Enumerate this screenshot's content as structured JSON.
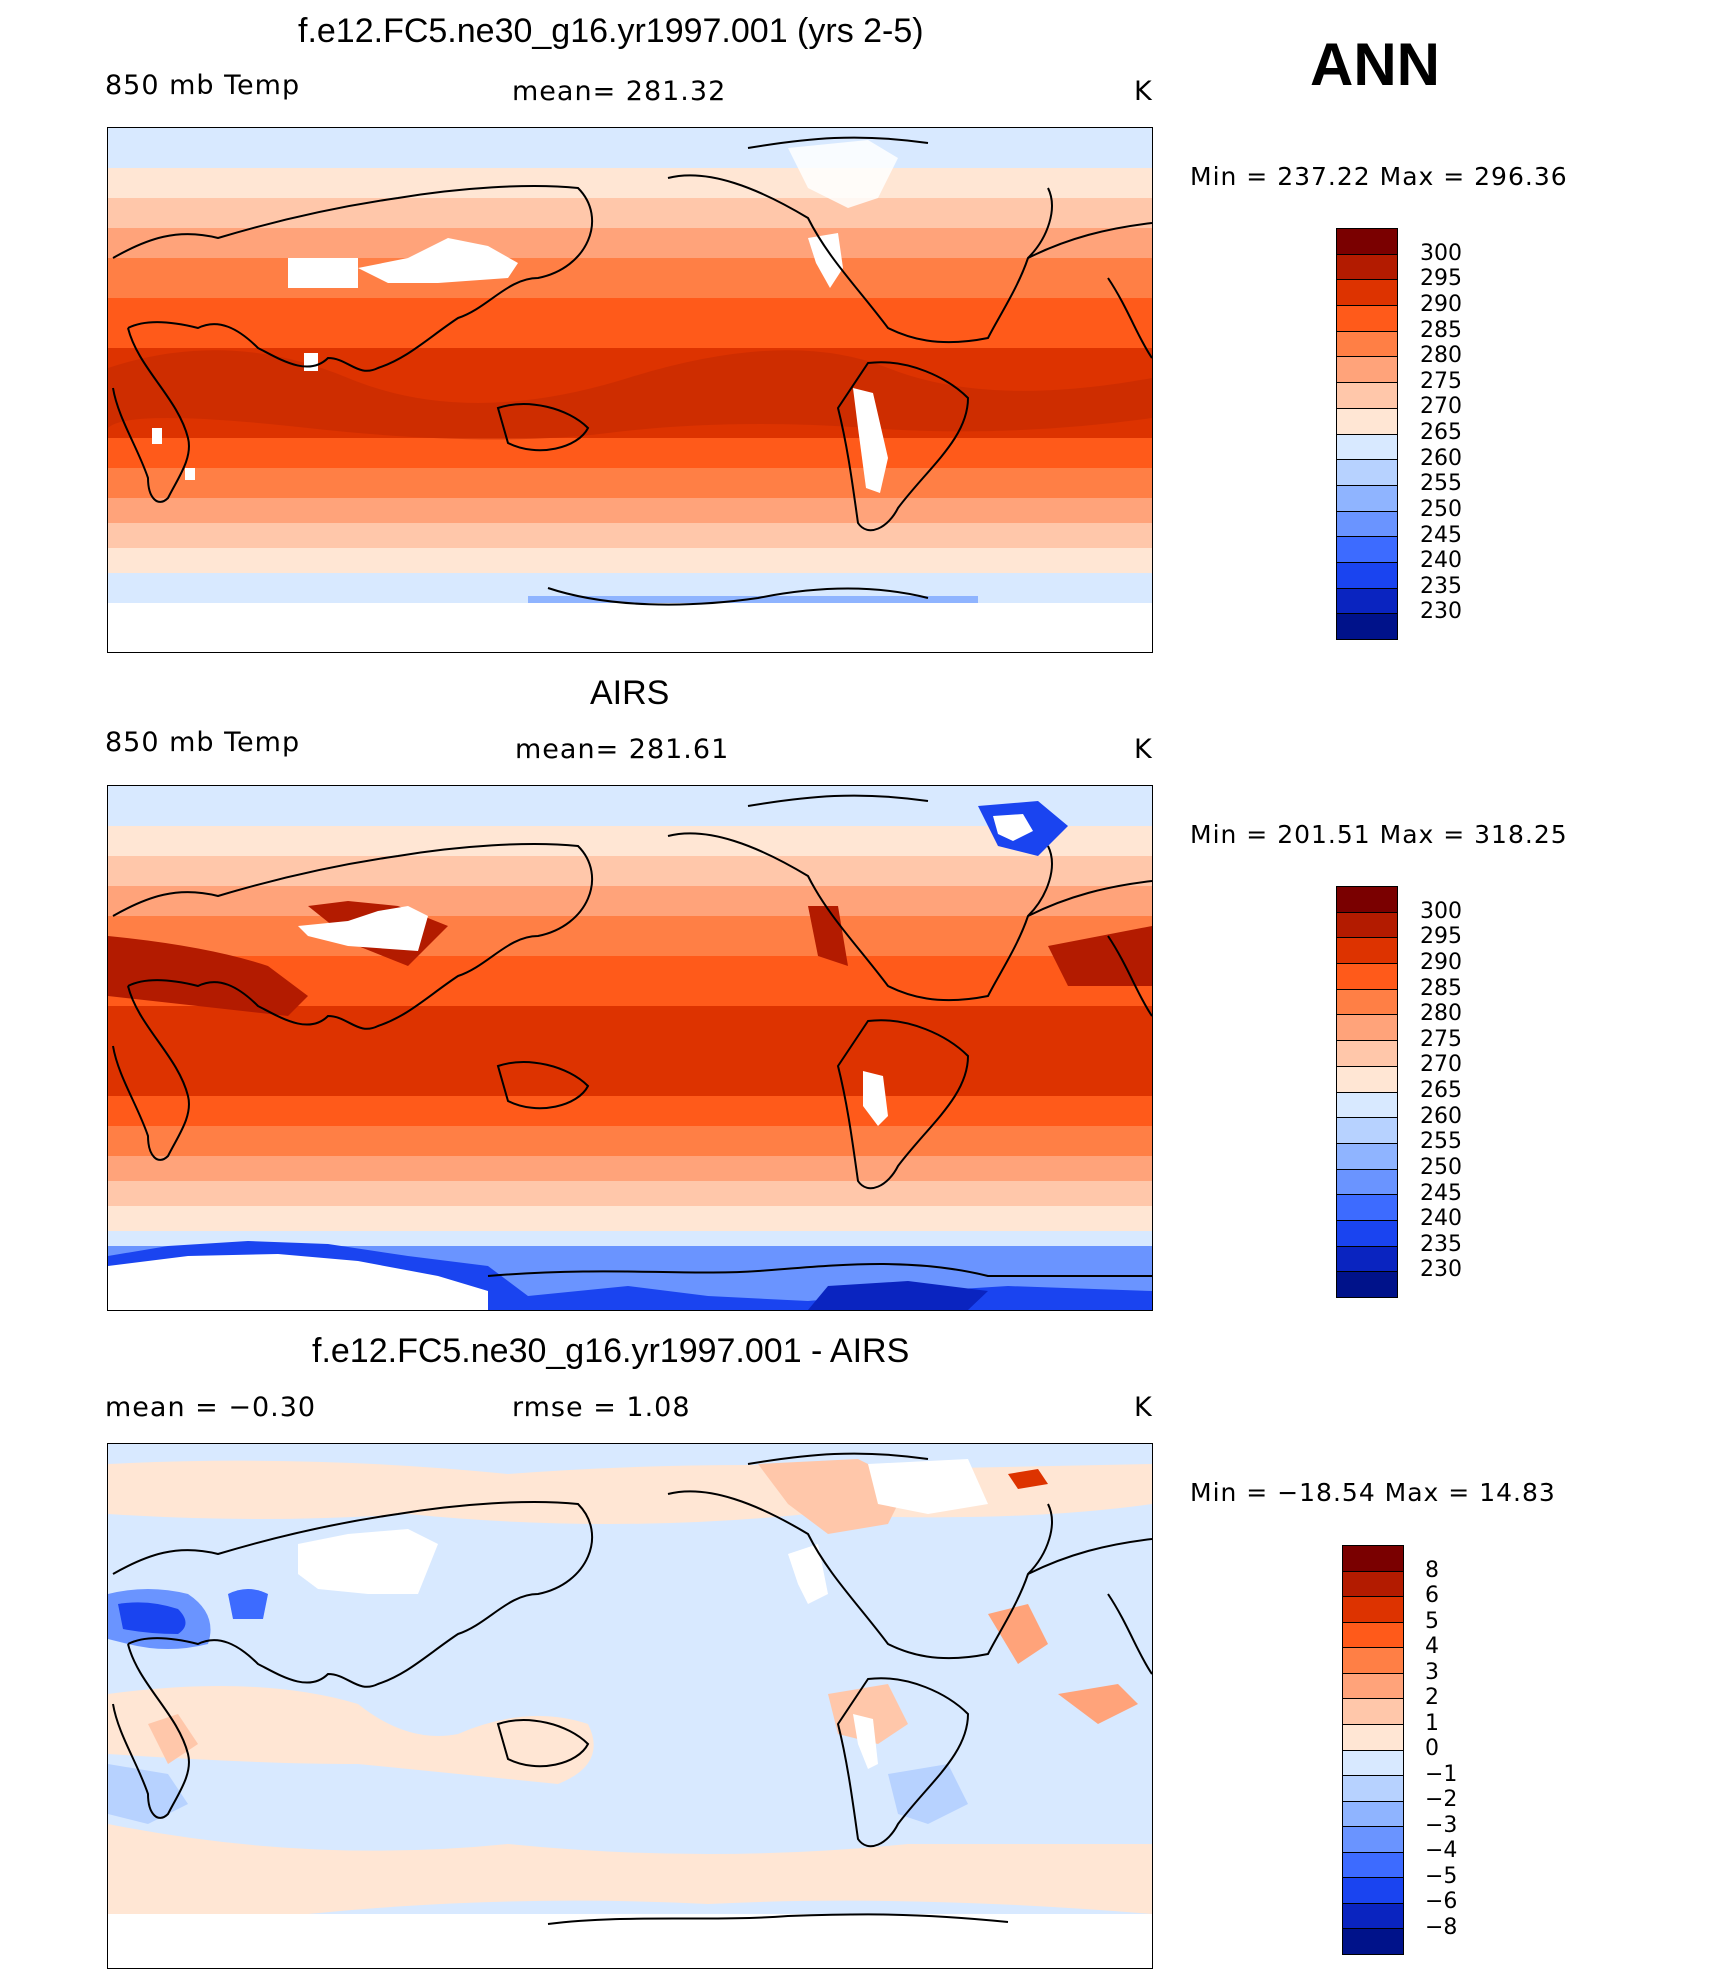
{
  "season": "ANN",
  "panels": [
    {
      "title": "f.e12.FC5.ne30_g16.yr1997.001 (yrs 2-5)",
      "left_label": "850 mb Temp",
      "center_label": "mean= 281.32",
      "units": "K",
      "minmax": "Min = 237.22 Max = 296.36",
      "colorbar": {
        "colors": [
          "#7a0000",
          "#b31b00",
          "#dd3300",
          "#ff5a1a",
          "#ff7f45",
          "#ffa37a",
          "#ffc7aa",
          "#ffe6d4",
          "#d8e9ff",
          "#b7d2ff",
          "#8fb4ff",
          "#6a94ff",
          "#3d6bff",
          "#1a44f0",
          "#0a24c0",
          "#00128a"
        ],
        "labels": [
          "300",
          "295",
          "290",
          "285",
          "280",
          "275",
          "270",
          "265",
          "260",
          "255",
          "250",
          "245",
          "240",
          "235",
          "230"
        ]
      }
    },
    {
      "title": "AIRS",
      "left_label": "850 mb Temp",
      "center_label": "mean= 281.61",
      "units": "K",
      "minmax": "Min = 201.51 Max = 318.25",
      "colorbar": {
        "colors": [
          "#7a0000",
          "#b31b00",
          "#dd3300",
          "#ff5a1a",
          "#ff7f45",
          "#ffa37a",
          "#ffc7aa",
          "#ffe6d4",
          "#d8e9ff",
          "#b7d2ff",
          "#8fb4ff",
          "#6a94ff",
          "#3d6bff",
          "#1a44f0",
          "#0a24c0",
          "#00128a"
        ],
        "labels": [
          "300",
          "295",
          "290",
          "285",
          "280",
          "275",
          "270",
          "265",
          "260",
          "255",
          "250",
          "245",
          "240",
          "235",
          "230"
        ]
      }
    },
    {
      "title": "f.e12.FC5.ne30_g16.yr1997.001 - AIRS",
      "left_label": "mean = −0.30",
      "center_label": "rmse = 1.08",
      "units": "K",
      "minmax": "Min = −18.54 Max = 14.83",
      "colorbar": {
        "colors": [
          "#7a0000",
          "#b31b00",
          "#dd3300",
          "#ff5a1a",
          "#ff7f45",
          "#ffa37a",
          "#ffc7aa",
          "#ffe6d4",
          "#d8e9ff",
          "#b7d2ff",
          "#8fb4ff",
          "#6a94ff",
          "#3d6bff",
          "#1a44f0",
          "#0a24c0",
          "#00128a"
        ],
        "labels": [
          "8",
          "6",
          "5",
          "4",
          "3",
          "2",
          "1",
          "0",
          "−1",
          "−2",
          "−3",
          "−4",
          "−5",
          "−6",
          "−8"
        ]
      }
    }
  ]
}
